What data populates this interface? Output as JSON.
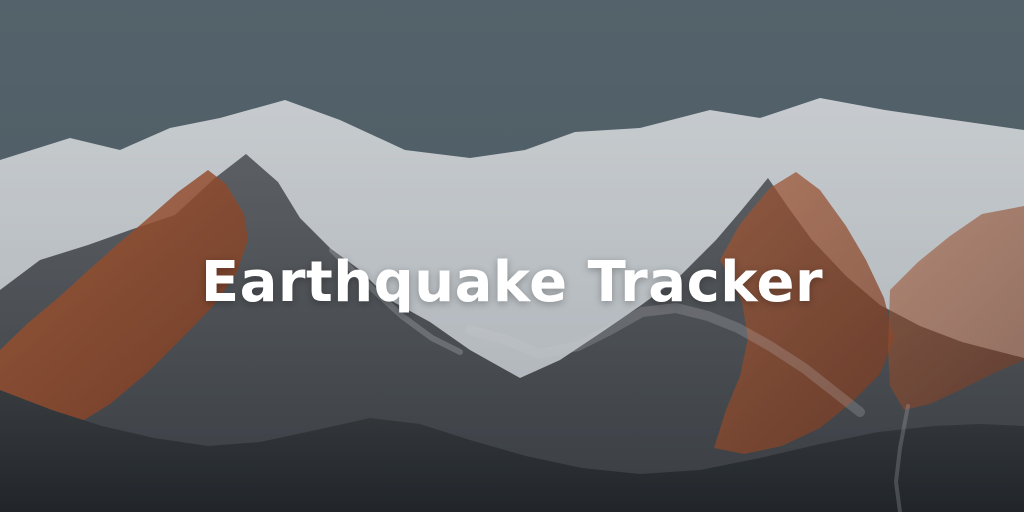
{
  "hero": {
    "title": "Earthquake Tracker",
    "background_subject": "snow-capped-mountain-ridge"
  },
  "colors": {
    "sky": "#61737d",
    "snow": "#e6ebef",
    "rock_dark": "#3f4348",
    "alpenglow": "#b5582c",
    "title": "#ffffff"
  }
}
